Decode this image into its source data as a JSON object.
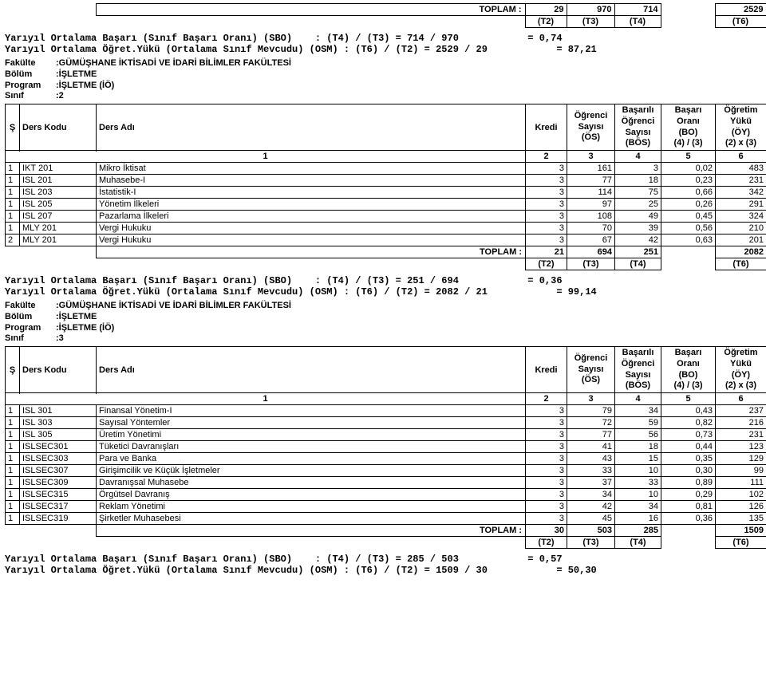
{
  "cols": {
    "s_w": 18,
    "kod_w": 96,
    "ad_w": 538,
    "kredi_w": 52,
    "os_w": 60,
    "bos_w": 58,
    "bo_w": 68,
    "oy_w": 64
  },
  "headers": {
    "s": "Ş",
    "kod": "Ders Kodu",
    "ad": "Ders Adı",
    "kredi": "Kredi",
    "os1": "Öğrenci",
    "os2": "Sayısı",
    "os3": "(ÖS)",
    "bos1": "Başarılı",
    "bos2": "Öğrenci",
    "bos3": "Sayısı",
    "bos4": "(BÖS)",
    "bo1": "Başarı",
    "bo2": "Oranı",
    "bo3": "(BO)",
    "bo4": "(4) / (3)",
    "oy1": "Öğretim",
    "oy2": "Yükü",
    "oy3": "(ÖY)",
    "oy4": "(2) x (3)",
    "n1": "1",
    "n2": "2",
    "n3": "3",
    "n4": "4",
    "n5": "5",
    "n6": "6",
    "toplam": "TOPLAM :",
    "t2": "(T2)",
    "t3": "(T3)",
    "t4": "(T4)",
    "t6": "(T6)"
  },
  "block0": {
    "totals": {
      "kredi": "29",
      "os": "970",
      "bos": "714",
      "oy": "2529"
    },
    "calc1": "Yarıyıl Ortalama Başarı (Sınıf Başarı Oranı) (SBO)    : (T4) / (T3) = 714 / 970            = 0,74",
    "calc2": "Yarıyıl Ortalama Öğret.Yükü (Ortalama Sınıf Mevcudu) (OSM) : (T6) / (T2) = 2529 / 29            = 87,21"
  },
  "block1": {
    "meta": {
      "fakulte_k": "Fakülte",
      "fakulte_v": ":GÜMÜŞHANE İKTİSADİ VE İDARİ BİLİMLER FAKÜLTESİ",
      "bolum_k": "Bölüm",
      "bolum_v": ":İŞLETME",
      "program_k": "Program",
      "program_v": ":İŞLETME (İÖ)",
      "sinif_k": "Sınıf",
      "sinif_v": ":2"
    },
    "rows": [
      {
        "s": "1",
        "kod": "IKT 201",
        "ad": "Mikro İktisat",
        "kredi": "3",
        "os": "161",
        "bos": "3",
        "bo": "0,02",
        "oy": "483"
      },
      {
        "s": "1",
        "kod": "ISL 201",
        "ad": "Muhasebe-I",
        "kredi": "3",
        "os": "77",
        "bos": "18",
        "bo": "0,23",
        "oy": "231"
      },
      {
        "s": "1",
        "kod": "ISL 203",
        "ad": "İstatistik-I",
        "kredi": "3",
        "os": "114",
        "bos": "75",
        "bo": "0,66",
        "oy": "342"
      },
      {
        "s": "1",
        "kod": "ISL 205",
        "ad": "Yönetim İlkeleri",
        "kredi": "3",
        "os": "97",
        "bos": "25",
        "bo": "0,26",
        "oy": "291"
      },
      {
        "s": "1",
        "kod": "ISL 207",
        "ad": "Pazarlama İlkeleri",
        "kredi": "3",
        "os": "108",
        "bos": "49",
        "bo": "0,45",
        "oy": "324"
      },
      {
        "s": "1",
        "kod": "MLY 201",
        "ad": "Vergi Hukuku",
        "kredi": "3",
        "os": "70",
        "bos": "39",
        "bo": "0,56",
        "oy": "210"
      },
      {
        "s": "2",
        "kod": "MLY 201",
        "ad": "Vergi Hukuku",
        "kredi": "3",
        "os": "67",
        "bos": "42",
        "bo": "0,63",
        "oy": "201"
      }
    ],
    "totals": {
      "kredi": "21",
      "os": "694",
      "bos": "251",
      "oy": "2082"
    },
    "calc1": "Yarıyıl Ortalama Başarı (Sınıf Başarı Oranı) (SBO)    : (T4) / (T3) = 251 / 694            = 0,36",
    "calc2": "Yarıyıl Ortalama Öğret.Yükü (Ortalama Sınıf Mevcudu) (OSM) : (T6) / (T2) = 2082 / 21            = 99,14"
  },
  "block2": {
    "meta": {
      "fakulte_k": "Fakülte",
      "fakulte_v": ":GÜMÜŞHANE İKTİSADİ VE İDARİ BİLİMLER FAKÜLTESİ",
      "bolum_k": "Bölüm",
      "bolum_v": ":İŞLETME",
      "program_k": "Program",
      "program_v": ":İŞLETME (İÖ)",
      "sinif_k": "Sınıf",
      "sinif_v": ":3"
    },
    "rows": [
      {
        "s": "1",
        "kod": "ISL 301",
        "ad": "Finansal Yönetim-I",
        "kredi": "3",
        "os": "79",
        "bos": "34",
        "bo": "0,43",
        "oy": "237"
      },
      {
        "s": "1",
        "kod": "ISL 303",
        "ad": "Sayısal Yöntemler",
        "kredi": "3",
        "os": "72",
        "bos": "59",
        "bo": "0,82",
        "oy": "216"
      },
      {
        "s": "1",
        "kod": "ISL 305",
        "ad": "Üretim Yönetimi",
        "kredi": "3",
        "os": "77",
        "bos": "56",
        "bo": "0,73",
        "oy": "231"
      },
      {
        "s": "1",
        "kod": "ISLSEC301",
        "ad": "Tüketici Davranışları",
        "kredi": "3",
        "os": "41",
        "bos": "18",
        "bo": "0,44",
        "oy": "123"
      },
      {
        "s": "1",
        "kod": "ISLSEC303",
        "ad": "Para ve Banka",
        "kredi": "3",
        "os": "43",
        "bos": "15",
        "bo": "0,35",
        "oy": "129"
      },
      {
        "s": "1",
        "kod": "ISLSEC307",
        "ad": "Girişimcilik ve Küçük İşletmeler",
        "kredi": "3",
        "os": "33",
        "bos": "10",
        "bo": "0,30",
        "oy": "99"
      },
      {
        "s": "1",
        "kod": "ISLSEC309",
        "ad": "Davranışsal Muhasebe",
        "kredi": "3",
        "os": "37",
        "bos": "33",
        "bo": "0,89",
        "oy": "111"
      },
      {
        "s": "1",
        "kod": "ISLSEC315",
        "ad": "Örgütsel Davranış",
        "kredi": "3",
        "os": "34",
        "bos": "10",
        "bo": "0,29",
        "oy": "102"
      },
      {
        "s": "1",
        "kod": "ISLSEC317",
        "ad": "Reklam Yönetimi",
        "kredi": "3",
        "os": "42",
        "bos": "34",
        "bo": "0,81",
        "oy": "126"
      },
      {
        "s": "1",
        "kod": "ISLSEC319",
        "ad": "Şirketler Muhasebesi",
        "kredi": "3",
        "os": "45",
        "bos": "16",
        "bo": "0,36",
        "oy": "135"
      }
    ],
    "totals": {
      "kredi": "30",
      "os": "503",
      "bos": "285",
      "oy": "1509"
    },
    "calc1": "Yarıyıl Ortalama Başarı (Sınıf Başarı Oranı) (SBO)    : (T4) / (T3) = 285 / 503            = 0,57",
    "calc2": "Yarıyıl Ortalama Öğret.Yükü (Ortalama Sınıf Mevcudu) (OSM) : (T6) / (T2) = 1509 / 30            = 50,30"
  }
}
